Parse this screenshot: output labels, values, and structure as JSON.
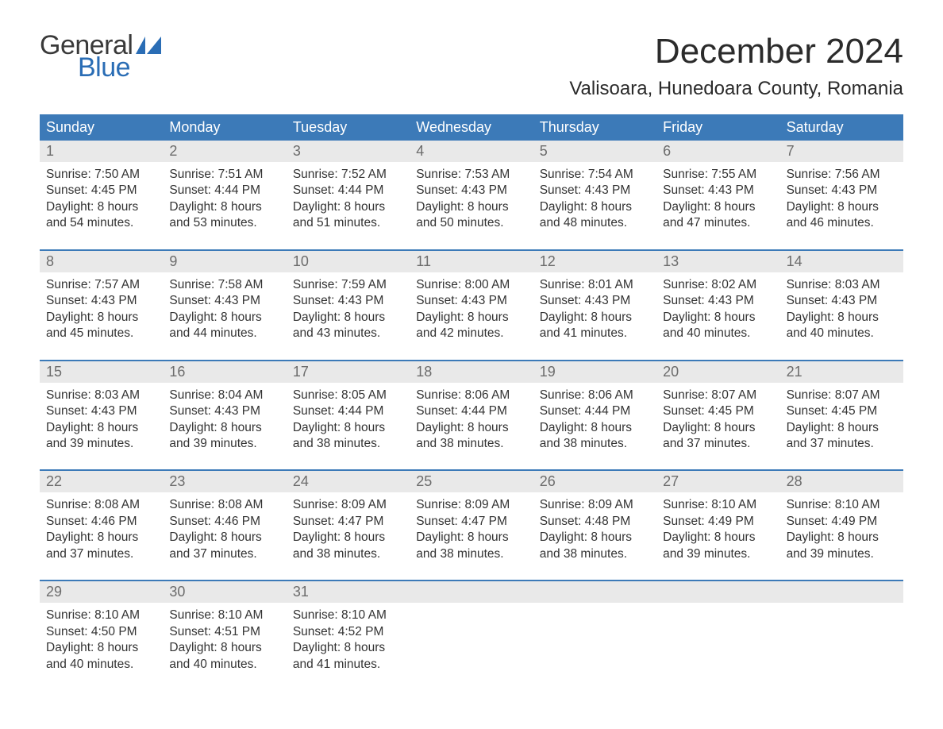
{
  "brand": {
    "word1": "General",
    "word2": "Blue",
    "word1_color": "#3a3a3a",
    "word2_color": "#2a6db5",
    "flag_color": "#2a6db5"
  },
  "title": "December 2024",
  "location": "Valisoara, Hunedoara County, Romania",
  "colors": {
    "header_bg": "#3c7ab8",
    "header_text": "#ffffff",
    "daynum_bg": "#e9e9e9",
    "daynum_text": "#6c6c6c",
    "body_text": "#333333",
    "week_border": "#3c7ab8",
    "page_bg": "#ffffff"
  },
  "fonts": {
    "title_size_pt": 33,
    "location_size_pt": 18,
    "dow_size_pt": 14,
    "daynum_size_pt": 14,
    "body_size_pt": 12
  },
  "days_of_week": [
    "Sunday",
    "Monday",
    "Tuesday",
    "Wednesday",
    "Thursday",
    "Friday",
    "Saturday"
  ],
  "weeks": [
    [
      {
        "n": "1",
        "sunrise": "Sunrise: 7:50 AM",
        "sunset": "Sunset: 4:45 PM",
        "dl1": "Daylight: 8 hours",
        "dl2": "and 54 minutes."
      },
      {
        "n": "2",
        "sunrise": "Sunrise: 7:51 AM",
        "sunset": "Sunset: 4:44 PM",
        "dl1": "Daylight: 8 hours",
        "dl2": "and 53 minutes."
      },
      {
        "n": "3",
        "sunrise": "Sunrise: 7:52 AM",
        "sunset": "Sunset: 4:44 PM",
        "dl1": "Daylight: 8 hours",
        "dl2": "and 51 minutes."
      },
      {
        "n": "4",
        "sunrise": "Sunrise: 7:53 AM",
        "sunset": "Sunset: 4:43 PM",
        "dl1": "Daylight: 8 hours",
        "dl2": "and 50 minutes."
      },
      {
        "n": "5",
        "sunrise": "Sunrise: 7:54 AM",
        "sunset": "Sunset: 4:43 PM",
        "dl1": "Daylight: 8 hours",
        "dl2": "and 48 minutes."
      },
      {
        "n": "6",
        "sunrise": "Sunrise: 7:55 AM",
        "sunset": "Sunset: 4:43 PM",
        "dl1": "Daylight: 8 hours",
        "dl2": "and 47 minutes."
      },
      {
        "n": "7",
        "sunrise": "Sunrise: 7:56 AM",
        "sunset": "Sunset: 4:43 PM",
        "dl1": "Daylight: 8 hours",
        "dl2": "and 46 minutes."
      }
    ],
    [
      {
        "n": "8",
        "sunrise": "Sunrise: 7:57 AM",
        "sunset": "Sunset: 4:43 PM",
        "dl1": "Daylight: 8 hours",
        "dl2": "and 45 minutes."
      },
      {
        "n": "9",
        "sunrise": "Sunrise: 7:58 AM",
        "sunset": "Sunset: 4:43 PM",
        "dl1": "Daylight: 8 hours",
        "dl2": "and 44 minutes."
      },
      {
        "n": "10",
        "sunrise": "Sunrise: 7:59 AM",
        "sunset": "Sunset: 4:43 PM",
        "dl1": "Daylight: 8 hours",
        "dl2": "and 43 minutes."
      },
      {
        "n": "11",
        "sunrise": "Sunrise: 8:00 AM",
        "sunset": "Sunset: 4:43 PM",
        "dl1": "Daylight: 8 hours",
        "dl2": "and 42 minutes."
      },
      {
        "n": "12",
        "sunrise": "Sunrise: 8:01 AM",
        "sunset": "Sunset: 4:43 PM",
        "dl1": "Daylight: 8 hours",
        "dl2": "and 41 minutes."
      },
      {
        "n": "13",
        "sunrise": "Sunrise: 8:02 AM",
        "sunset": "Sunset: 4:43 PM",
        "dl1": "Daylight: 8 hours",
        "dl2": "and 40 minutes."
      },
      {
        "n": "14",
        "sunrise": "Sunrise: 8:03 AM",
        "sunset": "Sunset: 4:43 PM",
        "dl1": "Daylight: 8 hours",
        "dl2": "and 40 minutes."
      }
    ],
    [
      {
        "n": "15",
        "sunrise": "Sunrise: 8:03 AM",
        "sunset": "Sunset: 4:43 PM",
        "dl1": "Daylight: 8 hours",
        "dl2": "and 39 minutes."
      },
      {
        "n": "16",
        "sunrise": "Sunrise: 8:04 AM",
        "sunset": "Sunset: 4:43 PM",
        "dl1": "Daylight: 8 hours",
        "dl2": "and 39 minutes."
      },
      {
        "n": "17",
        "sunrise": "Sunrise: 8:05 AM",
        "sunset": "Sunset: 4:44 PM",
        "dl1": "Daylight: 8 hours",
        "dl2": "and 38 minutes."
      },
      {
        "n": "18",
        "sunrise": "Sunrise: 8:06 AM",
        "sunset": "Sunset: 4:44 PM",
        "dl1": "Daylight: 8 hours",
        "dl2": "and 38 minutes."
      },
      {
        "n": "19",
        "sunrise": "Sunrise: 8:06 AM",
        "sunset": "Sunset: 4:44 PM",
        "dl1": "Daylight: 8 hours",
        "dl2": "and 38 minutes."
      },
      {
        "n": "20",
        "sunrise": "Sunrise: 8:07 AM",
        "sunset": "Sunset: 4:45 PM",
        "dl1": "Daylight: 8 hours",
        "dl2": "and 37 minutes."
      },
      {
        "n": "21",
        "sunrise": "Sunrise: 8:07 AM",
        "sunset": "Sunset: 4:45 PM",
        "dl1": "Daylight: 8 hours",
        "dl2": "and 37 minutes."
      }
    ],
    [
      {
        "n": "22",
        "sunrise": "Sunrise: 8:08 AM",
        "sunset": "Sunset: 4:46 PM",
        "dl1": "Daylight: 8 hours",
        "dl2": "and 37 minutes."
      },
      {
        "n": "23",
        "sunrise": "Sunrise: 8:08 AM",
        "sunset": "Sunset: 4:46 PM",
        "dl1": "Daylight: 8 hours",
        "dl2": "and 37 minutes."
      },
      {
        "n": "24",
        "sunrise": "Sunrise: 8:09 AM",
        "sunset": "Sunset: 4:47 PM",
        "dl1": "Daylight: 8 hours",
        "dl2": "and 38 minutes."
      },
      {
        "n": "25",
        "sunrise": "Sunrise: 8:09 AM",
        "sunset": "Sunset: 4:47 PM",
        "dl1": "Daylight: 8 hours",
        "dl2": "and 38 minutes."
      },
      {
        "n": "26",
        "sunrise": "Sunrise: 8:09 AM",
        "sunset": "Sunset: 4:48 PM",
        "dl1": "Daylight: 8 hours",
        "dl2": "and 38 minutes."
      },
      {
        "n": "27",
        "sunrise": "Sunrise: 8:10 AM",
        "sunset": "Sunset: 4:49 PM",
        "dl1": "Daylight: 8 hours",
        "dl2": "and 39 minutes."
      },
      {
        "n": "28",
        "sunrise": "Sunrise: 8:10 AM",
        "sunset": "Sunset: 4:49 PM",
        "dl1": "Daylight: 8 hours",
        "dl2": "and 39 minutes."
      }
    ],
    [
      {
        "n": "29",
        "sunrise": "Sunrise: 8:10 AM",
        "sunset": "Sunset: 4:50 PM",
        "dl1": "Daylight: 8 hours",
        "dl2": "and 40 minutes."
      },
      {
        "n": "30",
        "sunrise": "Sunrise: 8:10 AM",
        "sunset": "Sunset: 4:51 PM",
        "dl1": "Daylight: 8 hours",
        "dl2": "and 40 minutes."
      },
      {
        "n": "31",
        "sunrise": "Sunrise: 8:10 AM",
        "sunset": "Sunset: 4:52 PM",
        "dl1": "Daylight: 8 hours",
        "dl2": "and 41 minutes."
      },
      null,
      null,
      null,
      null
    ]
  ]
}
